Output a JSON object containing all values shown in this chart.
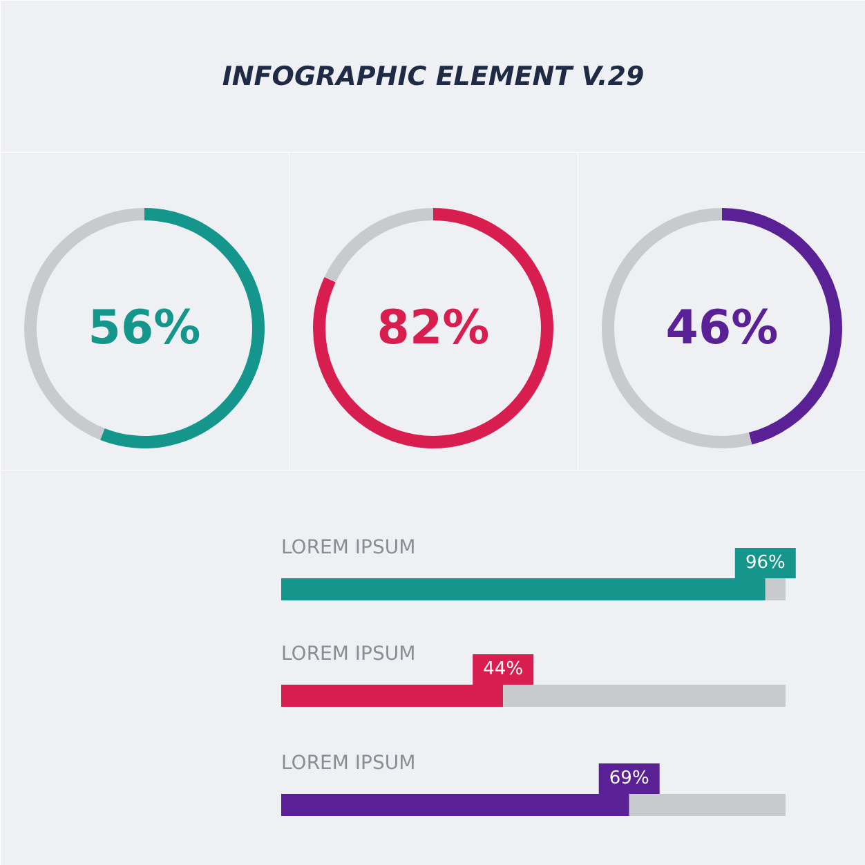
{
  "chart_data": [
    {
      "type": "other",
      "title": "INFOGRAPHIC ELEMENT V.29"
    },
    {
      "type": "donut",
      "categories": [
        null,
        null
      ],
      "values": [
        56,
        44
      ],
      "colors": [
        "#14968c",
        "#c9cacd"
      ],
      "annotations": [
        "56%"
      ]
    },
    {
      "type": "donut",
      "categories": [
        null,
        null
      ],
      "values": [
        82,
        18
      ],
      "colors": [
        "#d81e4f",
        "#c9cacd"
      ],
      "annotations": [
        "82%"
      ]
    },
    {
      "type": "donut",
      "categories": [
        null,
        null
      ],
      "values": [
        46,
        54
      ],
      "colors": [
        "#5a2196",
        "#c9cacd"
      ],
      "annotations": [
        "46%"
      ]
    },
    {
      "type": "bar",
      "orientation": "horizontal",
      "stacked": true,
      "categories": [
        "LOREM IPSUM",
        "LOREM IPSUM",
        "LOREM IPSUM"
      ],
      "xlim": [
        0,
        100
      ],
      "tick_labels": false,
      "series": [
        {
          "colors": [
            "#14968c",
            "#d81e4f",
            "#5a2196"
          ],
          "values": [
            96,
            44,
            69
          ],
          "value_labels": [
            "96%",
            "44%",
            "69%"
          ]
        },
        {
          "color": "#c9cacd",
          "values": [
            4,
            56,
            31
          ]
        }
      ]
    }
  ]
}
